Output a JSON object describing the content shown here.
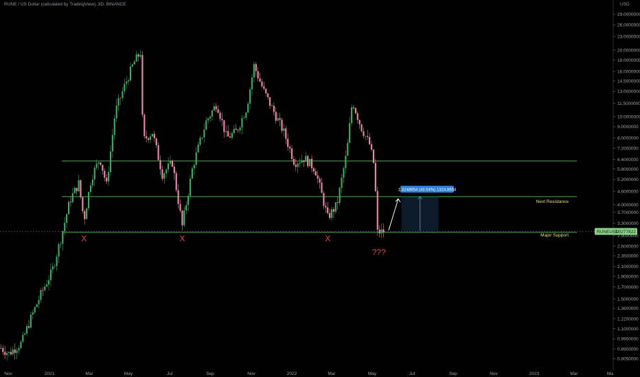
{
  "header": {
    "title": "RUNE / US Dollar (calculated by TradingView), 3D, BINANCE",
    "currency": "USD"
  },
  "chart_data": {
    "type": "candlestick",
    "symbol": "RUNEUSD",
    "last_price": "3.0277822",
    "price_scale": "log",
    "y_ticks": [
      "29.0000000",
      "26.0000000",
      "23.0000000",
      "20.0000000",
      "18.0000000",
      "16.0000000",
      "14.5000000",
      "13.0000000",
      "11.5000000",
      "10.0000000",
      "9.0000000",
      "8.0000000",
      "7.2000000",
      "6.4000000",
      "5.8000000",
      "5.2000000",
      "4.6000000",
      "4.0000000",
      "3.7000000",
      "3.3000000",
      "2.9000000",
      "2.6000000",
      "2.3500000",
      "2.1000000",
      "1.9000000",
      "1.7000000",
      "1.5000000",
      "1.3600000",
      "1.2200000",
      "1.1000000",
      "0.9900000",
      "0.8900000",
      "0.8050000"
    ],
    "x_ticks": [
      "Nov",
      "2021",
      "Mar",
      "May",
      "Jul",
      "Sep",
      "Nov",
      "2022",
      "Mar",
      "May",
      "Jul",
      "Sep",
      "Nov",
      "2023",
      "Mar",
      "Ma"
    ],
    "levels": [
      {
        "name": "resistance-top",
        "price": 6.3,
        "color": "#4caf50",
        "label": ""
      },
      {
        "name": "next-resistance",
        "price": 4.35,
        "color": "#4caf50",
        "label": "Next Resistance"
      },
      {
        "name": "major-support",
        "price": 3.0,
        "color": "#4caf50",
        "label": "Major Support"
      }
    ],
    "annotations": [
      {
        "text": "X",
        "date": "2021-02-22"
      },
      {
        "text": "X",
        "date": "2021-07-20"
      },
      {
        "text": "X",
        "date": "2022-02-24"
      },
      {
        "text": "???",
        "date": "2022-05-12"
      }
    ],
    "measure": {
      "label": "1.3248654 (43.54%) 1324.8654",
      "from_price": 3.04,
      "to_price": 4.36,
      "from_date": "2022-06-15",
      "to_date": "2022-08-10"
    },
    "colors": {
      "up": "#26a69a",
      "up_body": "#3fa860",
      "down": "#e58aa0",
      "level": "#4caf50",
      "badge": "#2a7dd1"
    },
    "ohlc_keypoints": [
      [
        "2020-10-20",
        0.9
      ],
      [
        "2020-11-01",
        0.85
      ],
      [
        "2020-11-20",
        0.95
      ],
      [
        "2020-12-05",
        1.25
      ],
      [
        "2020-12-20",
        1.6
      ],
      [
        "2021-01-05",
        2.0
      ],
      [
        "2021-01-18",
        2.8
      ],
      [
        "2021-02-01",
        4.2
      ],
      [
        "2021-02-14",
        5.0
      ],
      [
        "2021-02-22",
        3.4
      ],
      [
        "2021-03-05",
        5.3
      ],
      [
        "2021-03-18",
        6.5
      ],
      [
        "2021-03-28",
        4.9
      ],
      [
        "2021-04-10",
        10.5
      ],
      [
        "2021-04-25",
        14.0
      ],
      [
        "2021-05-08",
        17.5
      ],
      [
        "2021-05-18",
        19.5
      ],
      [
        "2021-05-22",
        7.8
      ],
      [
        "2021-06-05",
        8.5
      ],
      [
        "2021-06-20",
        5.5
      ],
      [
        "2021-07-05",
        6.2
      ],
      [
        "2021-07-20",
        3.2
      ],
      [
        "2021-08-05",
        6.0
      ],
      [
        "2021-08-25",
        9.5
      ],
      [
        "2021-09-10",
        11.5
      ],
      [
        "2021-09-25",
        8.0
      ],
      [
        "2021-10-10",
        8.6
      ],
      [
        "2021-10-25",
        11.0
      ],
      [
        "2021-11-05",
        17.0
      ],
      [
        "2021-11-20",
        13.0
      ],
      [
        "2021-12-05",
        10.5
      ],
      [
        "2021-12-20",
        8.5
      ],
      [
        "2022-01-05",
        6.2
      ],
      [
        "2022-01-20",
        6.5
      ],
      [
        "2022-02-05",
        5.8
      ],
      [
        "2022-02-24",
        3.5
      ],
      [
        "2022-03-10",
        4.0
      ],
      [
        "2022-03-25",
        7.0
      ],
      [
        "2022-04-02",
        11.8
      ],
      [
        "2022-04-15",
        9.0
      ],
      [
        "2022-04-28",
        7.5
      ],
      [
        "2022-05-05",
        6.0
      ],
      [
        "2022-05-10",
        3.0
      ],
      [
        "2022-05-20",
        3.03
      ]
    ]
  }
}
